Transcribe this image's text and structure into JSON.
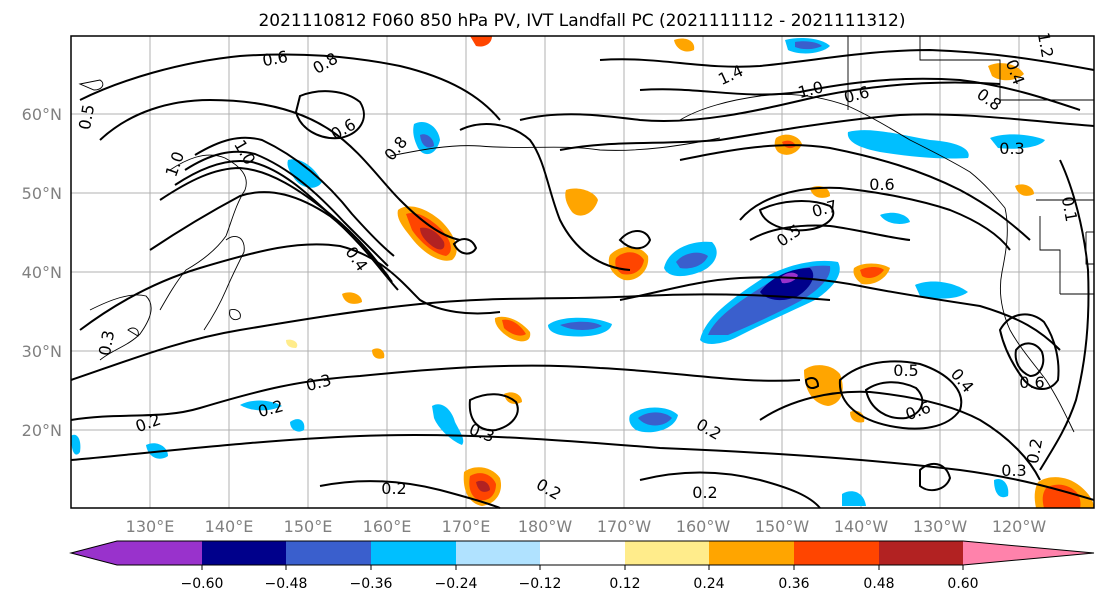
{
  "title": "2021110812 F060 850 hPa PV, IVT Landfall PC (2021111112 - 2021111312)",
  "map": {
    "lat_labels": [
      "60°N",
      "50°N",
      "40°N",
      "30°N",
      "20°N"
    ],
    "lon_labels": [
      "130°E",
      "140°E",
      "150°E",
      "160°E",
      "170°E",
      "180°W",
      "170°W",
      "160°W",
      "150°W",
      "140°W",
      "130°W",
      "120°W"
    ],
    "contour_labels": [
      "0.6",
      "0.8",
      "1.4",
      "1.0",
      "0.6",
      "0.8",
      "1.0",
      "0.5",
      "1.0",
      "0.6",
      "0.8",
      "0.6",
      "0.7",
      "0.5",
      "0.4",
      "0.3",
      "0.2",
      "0.2",
      "0.3",
      "0.2",
      "0.2",
      "0.2",
      "0.5",
      "0.6",
      "0.4",
      "0.6",
      "0.3",
      "0.3",
      "0.2",
      "0.3",
      "1.2",
      "0.4",
      "0.1",
      "0.2"
    ]
  },
  "colorbar": {
    "colors": [
      "#9932cc",
      "#00008b",
      "#3a5fcd",
      "#00bfff",
      "#b0e2ff",
      "#ffffff",
      "#ffec8b",
      "#ffa500",
      "#ff4500",
      "#b22222",
      "#ff82ab"
    ],
    "ticks": [
      "−0.60",
      "−0.48",
      "−0.36",
      "−0.24",
      "−0.12",
      "0.12",
      "0.24",
      "0.36",
      "0.48",
      "0.60"
    ]
  }
}
